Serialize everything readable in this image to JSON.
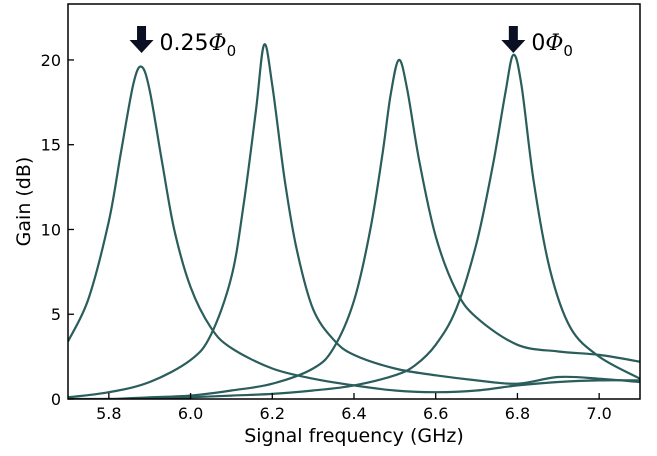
{
  "chart_data": {
    "type": "line",
    "title": "",
    "xlabel": "Signal frequency (GHz)",
    "ylabel": "Gain (dB)",
    "xlim": [
      5.7,
      7.1
    ],
    "ylim": [
      0,
      23.3
    ],
    "xticks": [
      5.8,
      6.0,
      6.2,
      6.4,
      6.6,
      6.8,
      7.0
    ],
    "xtick_labels": [
      "5.8",
      "6.0",
      "6.2",
      "6.4",
      "6.6",
      "6.8",
      "7.0"
    ],
    "yticks": [
      0,
      5,
      10,
      15,
      20
    ],
    "ytick_labels": [
      "0",
      "5",
      "10",
      "15",
      "20"
    ],
    "grid": false,
    "line_color": "#2a5d5b",
    "series": [
      {
        "x": [
          5.7,
          5.75,
          5.8,
          5.83,
          5.86,
          5.88,
          5.9,
          5.93,
          5.96,
          6.0,
          6.05,
          6.1,
          6.2,
          6.3,
          6.4,
          6.5,
          6.6,
          6.7,
          6.8,
          6.9,
          7.0,
          7.1
        ],
        "y": [
          3.4,
          5.9,
          10.5,
          14.6,
          18.6,
          19.6,
          18.2,
          14.0,
          10.0,
          6.6,
          4.2,
          3.0,
          1.8,
          1.2,
          0.8,
          0.5,
          0.4,
          0.5,
          0.8,
          1.0,
          1.1,
          1.1
        ]
      },
      {
        "x": [
          5.7,
          5.8,
          5.9,
          6.0,
          6.05,
          6.1,
          6.13,
          6.16,
          6.18,
          6.2,
          6.23,
          6.26,
          6.3,
          6.35,
          6.4,
          6.5,
          6.6,
          6.7,
          6.8,
          6.9,
          7.0,
          7.1
        ],
        "y": [
          0.1,
          0.4,
          1.0,
          2.3,
          3.8,
          7.2,
          11.5,
          17.0,
          20.9,
          18.5,
          13.0,
          8.8,
          5.3,
          3.5,
          2.6,
          1.8,
          1.4,
          1.1,
          0.9,
          1.3,
          1.2,
          1.0
        ]
      },
      {
        "x": [
          5.7,
          5.8,
          5.9,
          6.0,
          6.1,
          6.2,
          6.3,
          6.35,
          6.4,
          6.44,
          6.47,
          6.49,
          6.51,
          6.53,
          6.56,
          6.6,
          6.65,
          6.7,
          6.8,
          6.9,
          7.0,
          7.1
        ],
        "y": [
          0.0,
          0.0,
          0.1,
          0.2,
          0.5,
          0.9,
          1.8,
          3.0,
          5.8,
          10.0,
          14.5,
          18.0,
          20.0,
          18.3,
          14.0,
          9.6,
          6.4,
          4.8,
          3.2,
          2.8,
          2.6,
          2.2
        ]
      },
      {
        "x": [
          5.7,
          5.8,
          5.9,
          6.0,
          6.1,
          6.2,
          6.3,
          6.4,
          6.5,
          6.55,
          6.6,
          6.65,
          6.7,
          6.74,
          6.77,
          6.79,
          6.81,
          6.84,
          6.88,
          6.93,
          7.0,
          7.1
        ],
        "y": [
          0.0,
          0.0,
          0.0,
          0.1,
          0.2,
          0.3,
          0.5,
          0.8,
          1.4,
          2.0,
          3.2,
          5.3,
          9.2,
          13.8,
          18.0,
          20.3,
          18.5,
          12.8,
          7.6,
          4.2,
          2.5,
          1.2
        ]
      }
    ],
    "annotations": [
      {
        "text": "0.25",
        "symbol": "Φ",
        "subscript": "0",
        "x": 5.88,
        "arrow": "down"
      },
      {
        "text": "0",
        "symbol": "Φ",
        "subscript": "0",
        "x": 6.79,
        "arrow": "down"
      }
    ]
  }
}
